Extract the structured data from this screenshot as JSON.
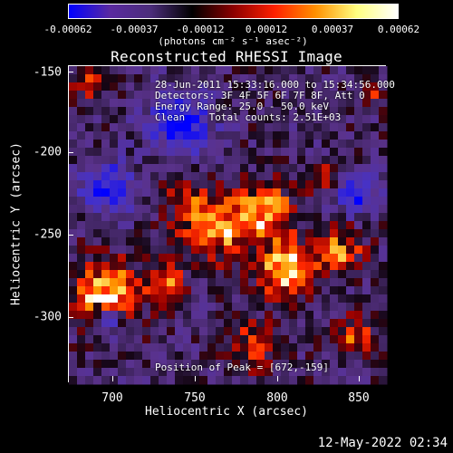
{
  "colorbar": {
    "tick_labels": [
      "-0.00062",
      "-0.00037",
      "-0.00012",
      "0.00012",
      "0.00037",
      "0.00062"
    ],
    "units": "(photons cm⁻² s⁻¹ asec⁻²)"
  },
  "title": "Reconstructed RHESSI Image",
  "info": {
    "time": "28-Jun-2011 15:33:16.000 to 15:34:56.000",
    "detectors": "Detectors: 3F 4F 5F 6F 7F 8F, Att 0",
    "energy": "Energy Range: 25.0 - 50.0 keV",
    "clean": "Clean    Total counts: 2.51E+03",
    "peak": "Position of Peak = [672,-159]"
  },
  "axes": {
    "xlabel": "Heliocentric X (arcsec)",
    "ylabel": "Heliocentric Y (arcsec)",
    "xticks": [
      "700",
      "750",
      "800",
      "850"
    ],
    "yticks": [
      "-150",
      "-200",
      "-250",
      "-300"
    ]
  },
  "timestamp": "12-May-2022 02:34",
  "colors": {
    "colormap": [
      "#0000ff",
      "#5a2aa0",
      "#4b2d7a",
      "#000000",
      "#8b0000",
      "#ff2000",
      "#ff9000",
      "#ffff80",
      "#ffffff"
    ]
  }
}
